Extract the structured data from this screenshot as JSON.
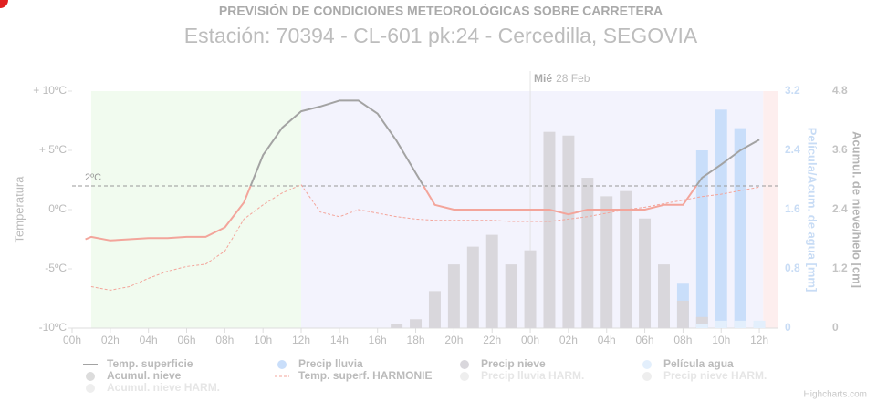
{
  "chart_data": {
    "type": "line",
    "title": "PREVISIÓN DE CONDICIONES METEOROLÓGICAS SOBRE CARRETERA",
    "subtitle": "Estación: 70394 - CL-601 pk:24 - Cercedilla, SEGOVIA",
    "day_label": {
      "weekday": "Mié",
      "date": "28 Feb",
      "x": 24
    },
    "y_title": "Temperatura",
    "y2_title": "Película/Acum. de agua [mm]",
    "y3_title": "Acumul. de nieve/hielo [cm]",
    "xlim": [
      0,
      37
    ],
    "xticks": [
      {
        "value": 0,
        "label": "00h"
      },
      {
        "value": 2,
        "label": "02h"
      },
      {
        "value": 4,
        "label": "04h"
      },
      {
        "value": 6,
        "label": "06h"
      },
      {
        "value": 8,
        "label": "08h"
      },
      {
        "value": 10,
        "label": "10h"
      },
      {
        "value": 12,
        "label": "12h"
      },
      {
        "value": 14,
        "label": "14h"
      },
      {
        "value": 16,
        "label": "16h"
      },
      {
        "value": 18,
        "label": "18h"
      },
      {
        "value": 20,
        "label": "20h"
      },
      {
        "value": 22,
        "label": "22h"
      },
      {
        "value": 24,
        "label": "00h"
      },
      {
        "value": 26,
        "label": "02h"
      },
      {
        "value": 28,
        "label": "04h"
      },
      {
        "value": 30,
        "label": "06h"
      },
      {
        "value": 32,
        "label": "08h"
      },
      {
        "value": 34,
        "label": "10h"
      },
      {
        "value": 36,
        "label": "12h"
      }
    ],
    "ylim": [
      -10,
      10
    ],
    "yticks": [
      {
        "value": 10,
        "label": "+ 10ºC"
      },
      {
        "value": 5,
        "label": "+ 5ºC"
      },
      {
        "value": 0,
        "label": "0ºC"
      },
      {
        "value": -5,
        "label": "-5ºC"
      },
      {
        "value": -10,
        "label": "-10ºC"
      }
    ],
    "y2lim": [
      0,
      3.2
    ],
    "y2ticks": [
      0,
      0.8,
      1.6,
      2.4,
      3.2
    ],
    "y3lim": [
      0,
      4.8
    ],
    "y3ticks": [
      0,
      1.2,
      2.4,
      3.6,
      4.8
    ],
    "plot_line": {
      "value": 2,
      "label": "2ºC",
      "color": "#999999"
    },
    "bands": [
      {
        "from": 1,
        "to": 12,
        "color": "#f1fbef"
      },
      {
        "from": 12,
        "to": 36.2,
        "color": "#f3f3fd"
      },
      {
        "from": 36.2,
        "to": 37,
        "color": "#fdeeee"
      }
    ],
    "series": [
      {
        "name": "Temp. superficie",
        "type": "line",
        "color": "#a3a3a3",
        "zone": {
          "value": 2,
          "color": "#f3a59b"
        },
        "x": [
          0.7,
          1,
          2,
          3,
          4,
          5,
          6,
          7,
          8,
          9,
          10,
          11,
          12,
          13,
          14,
          15,
          16,
          17,
          18,
          19,
          20,
          21,
          22,
          23,
          24,
          25,
          26,
          27,
          28,
          29,
          30,
          31,
          32,
          33,
          34,
          35,
          36
        ],
        "values": [
          -2.5,
          -2.3,
          -2.6,
          -2.5,
          -2.4,
          -2.4,
          -2.3,
          -2.3,
          -1.5,
          0.6,
          4.6,
          6.9,
          8.3,
          8.7,
          9.2,
          9.2,
          8.1,
          5.8,
          3.1,
          0.4,
          0,
          0,
          0,
          0,
          0,
          0,
          -0.4,
          0,
          0,
          0,
          0,
          0.4,
          0.4,
          2.7,
          3.8,
          5.0,
          5.9
        ]
      },
      {
        "name": "Precip lluvia",
        "type": "column",
        "axis": "y2",
        "color": "#c9defa",
        "x": [
          31,
          32,
          33,
          34,
          35
        ],
        "values": [
          0.4,
          0.6,
          2.4,
          2.95,
          2.7
        ]
      },
      {
        "name": "Precip nieve",
        "type": "column",
        "axis": "y2",
        "color": "#d9d7dc",
        "x": [
          17,
          18,
          19,
          20,
          21,
          22,
          23,
          24,
          25,
          26,
          27,
          28,
          29,
          30,
          31,
          32,
          33,
          34,
          35,
          36
        ],
        "values": [
          0.06,
          0.12,
          0.5,
          0.86,
          1.1,
          1.26,
          0.86,
          1.05,
          2.65,
          2.6,
          2.03,
          1.78,
          1.85,
          1.48,
          0.86,
          0.37,
          0.15,
          0.06,
          0.06,
          0.06
        ]
      },
      {
        "name": "Película agua",
        "type": "column",
        "axis": "y2",
        "color": "#e3effc",
        "x": [
          33,
          34,
          35,
          36
        ],
        "values": [
          0.05,
          0.1,
          0.1,
          0.1
        ]
      },
      {
        "name": "Acumul. nieve",
        "type": "column",
        "axis": "y3",
        "color": "#dcdcdc",
        "x": [],
        "values": []
      },
      {
        "name": "Temp. superf. HARMONIE",
        "type": "line",
        "dash": true,
        "color": "#f3a59b",
        "x": [
          1,
          2,
          3,
          4,
          5,
          6,
          7,
          8,
          9,
          10,
          11,
          12,
          13,
          14,
          15,
          16,
          17,
          18,
          19,
          20,
          21,
          22,
          23,
          24,
          25,
          26,
          27,
          28,
          29,
          30,
          31,
          32,
          33,
          34,
          35,
          36
        ],
        "values": [
          -6.5,
          -6.8,
          -6.5,
          -5.8,
          -5.2,
          -4.8,
          -4.6,
          -3.5,
          -0.8,
          0.4,
          1.4,
          2.1,
          -0.2,
          -0.6,
          0,
          -0.3,
          -0.6,
          -0.8,
          -0.9,
          -0.9,
          -0.9,
          -0.9,
          -1,
          -1,
          -1,
          -0.8,
          -0.6,
          -0.3,
          0,
          0.2,
          0.5,
          0.8,
          1.1,
          1.3,
          1.6,
          1.9
        ]
      },
      {
        "name": "Precip lluvia HARM.",
        "type": "column",
        "axis": "y2",
        "color": "#eeeeee",
        "visible": false,
        "x": [],
        "values": []
      },
      {
        "name": "Precip nieve HARM.",
        "type": "column",
        "axis": "y2",
        "color": "#eeeeee",
        "visible": false,
        "x": [],
        "values": []
      },
      {
        "name": "Acumul. nieve HARM.",
        "type": "column",
        "axis": "y3",
        "color": "#eeeeee",
        "visible": false,
        "x": [],
        "values": []
      }
    ],
    "credits": "Highcharts.com"
  }
}
